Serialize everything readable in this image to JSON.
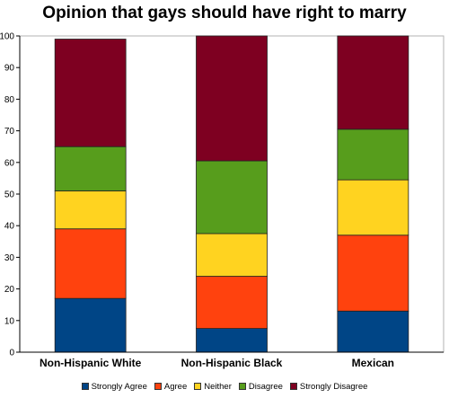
{
  "chart_data": {
    "type": "bar",
    "stacked": true,
    "title": "Opinion that gays should have right to marry",
    "xlabel": "",
    "ylabel": "",
    "ylim": [
      0,
      100
    ],
    "yticks": [
      "0",
      "10",
      "20",
      "30",
      "40",
      "50",
      "60",
      "70",
      "80",
      "90",
      "100"
    ],
    "grid": false,
    "legend_position": "bottom",
    "categories": [
      "Non-Hispanic White",
      "Non-Hispanic Black",
      "Mexican"
    ],
    "series": [
      {
        "name": "Strongly Agree",
        "color": "#004586",
        "values": [
          17,
          7.5,
          13
        ]
      },
      {
        "name": "Agree",
        "color": "#ff420e",
        "values": [
          22,
          16.5,
          24
        ]
      },
      {
        "name": "Neither",
        "color": "#ffd320",
        "values": [
          12,
          13.5,
          17.5
        ]
      },
      {
        "name": "Disagree",
        "color": "#579d1c",
        "values": [
          14,
          23,
          16
        ]
      },
      {
        "name": "Strongly Disagree",
        "color": "#7e0021",
        "values": [
          34,
          39.5,
          29.5
        ]
      }
    ]
  }
}
